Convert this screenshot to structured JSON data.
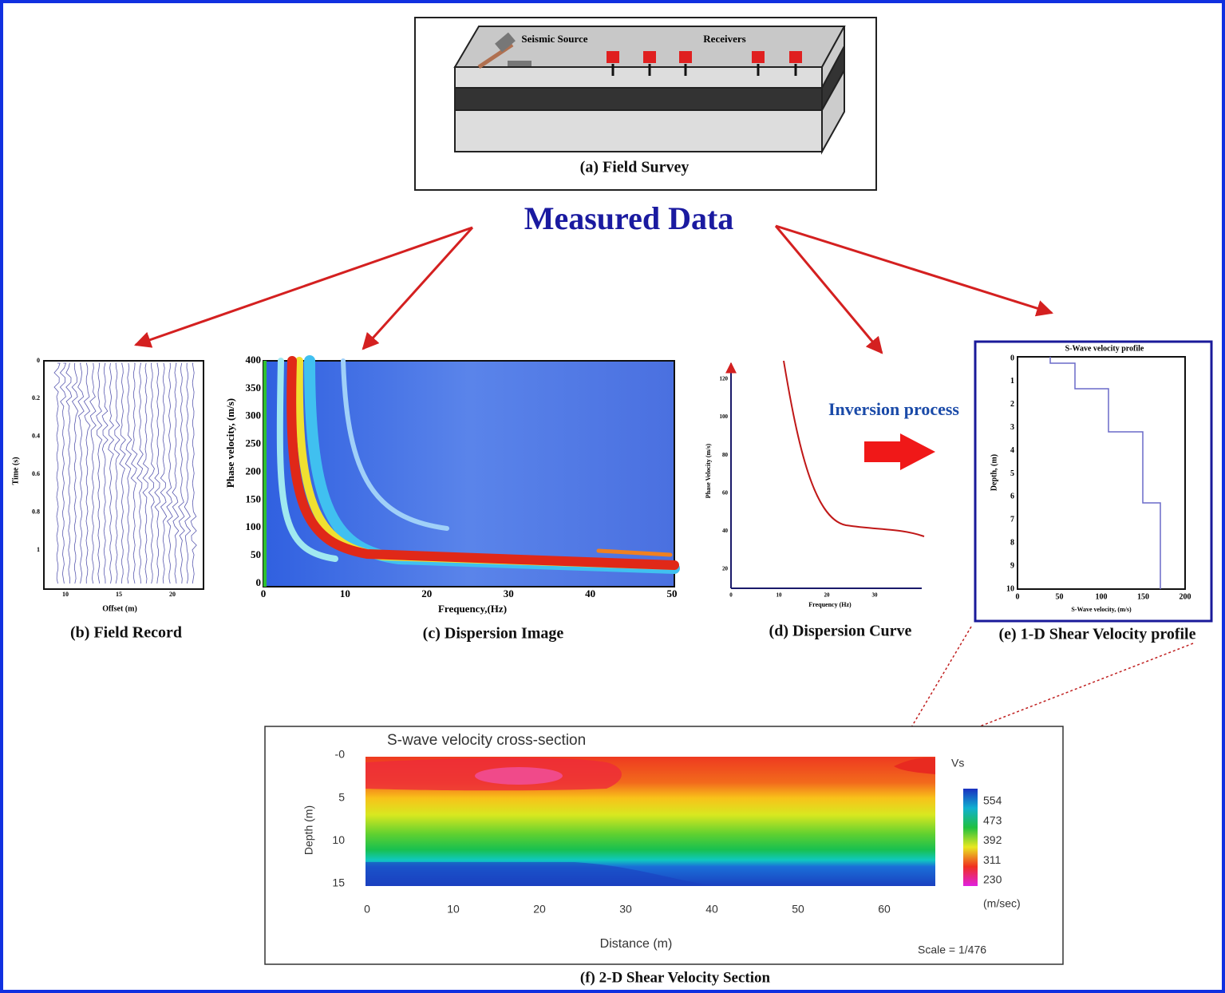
{
  "title": "Measured Data",
  "field_survey": {
    "source_label": "Seismic Source",
    "receivers_label": "Receivers",
    "caption": "(a) Field Survey"
  },
  "field_record": {
    "caption": "(b) Field Record",
    "x_label": "Offset (m)",
    "y_label": "Time (s)",
    "xticks": [
      "10",
      "15",
      "20"
    ],
    "yticks": [
      "0",
      "0.2",
      "0.4",
      "0.6",
      "0.8",
      "1"
    ]
  },
  "dispersion_image": {
    "caption": "(c) Dispersion Image",
    "x_label": "Frequency,(Hz)",
    "y_label": "Phase velocity, (m/s)",
    "xticks": [
      "0",
      "10",
      "20",
      "30",
      "40",
      "50"
    ],
    "yticks": [
      "0",
      "50",
      "100",
      "150",
      "200",
      "250",
      "300",
      "350",
      "400"
    ]
  },
  "dispersion_curve": {
    "caption": "(d) Dispersion Curve",
    "x_label": "Frequency (Hz)",
    "y_label": "Phase Velocity (m/s)",
    "xticks": [
      "0",
      "10",
      "20",
      "30"
    ],
    "yticks": [
      "20",
      "40",
      "60",
      "80",
      "100",
      "120"
    ]
  },
  "inversion_label": "Inversion process",
  "velocity_profile": {
    "title": "S-Wave velocity profile",
    "caption": "(e) 1-D Shear Velocity profile",
    "x_label": "S-Wave velocity, (m/s)",
    "y_label": "Depth, (m)",
    "xticks": [
      "0",
      "50",
      "100",
      "150",
      "200"
    ],
    "yticks": [
      "0",
      "1",
      "2",
      "3",
      "4",
      "5",
      "6",
      "7",
      "8",
      "9",
      "10"
    ]
  },
  "cross_section": {
    "title": "S-wave velocity cross-section",
    "caption": "(f) 2-D Shear Velocity Section",
    "x_label": "Distance (m)",
    "y_label": "Depth (m)",
    "xticks": [
      "0",
      "10",
      "20",
      "30",
      "40",
      "50",
      "60"
    ],
    "yticks": [
      "-0",
      "5",
      "10",
      "15"
    ],
    "legend_title": "Vs",
    "legend_ticks": [
      "554",
      "473",
      "392",
      "311",
      "230"
    ],
    "legend_unit": "(m/sec)",
    "scale": "Scale = 1/476"
  }
}
